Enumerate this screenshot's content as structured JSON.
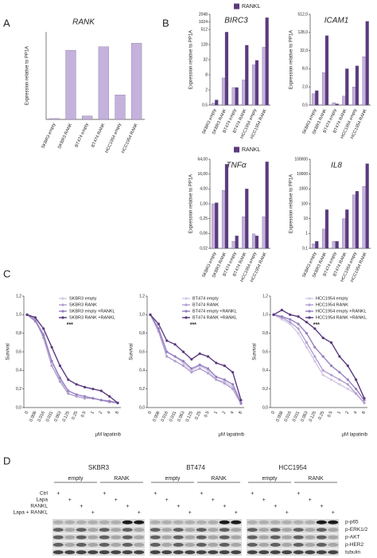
{
  "panel_labels": [
    "A",
    "B",
    "C",
    "D"
  ],
  "chart_data": [
    {
      "type": "bar",
      "title": "RANK",
      "y_label": "Expression relative to PP1A",
      "categories": [
        "SKBR3 empty",
        "SKBR3 RANK",
        "BT474 empty",
        "BT474 RANK",
        "HCC1954 empty",
        "HCC1954 RANK"
      ],
      "values": [
        1,
        79,
        4,
        83,
        28,
        87
      ],
      "color": "#c4b2dd",
      "ylim": [
        0,
        100
      ]
    },
    {
      "type": "bar",
      "title": "BIRC3",
      "y_label": "Expression relative to PP1A",
      "log_scale": true,
      "legend": true,
      "categories": [
        "SKBR3 empty",
        "SKBR3 RANK",
        "BT474 empty",
        "BT474 RANK",
        "HCC1954 empty",
        "HCC1954 RANK"
      ],
      "series": [
        {
          "color": "#c4b2dd",
          "values": [
            0.6,
            6,
            2.5,
            5,
            20,
            100
          ]
        },
        {
          "name": "RANKL",
          "color": "#5b3a7e",
          "values": [
            0.8,
            400,
            2.5,
            120,
            30,
            1500
          ]
        }
      ],
      "ylim": [
        0.5,
        2048
      ],
      "yticks": [
        {
          "value": 0.5,
          "label": "0,5"
        },
        2,
        8,
        32,
        128,
        512,
        1024,
        2048
      ]
    },
    {
      "type": "bar",
      "title": "ICAM1",
      "y_label": "Expression relative to PP1A",
      "log_scale": true,
      "categories": [
        "SKBR3 empty",
        "SKBR3 RANK",
        "BT474 empty",
        "BT474 RANK",
        "HCC1954 empty",
        "HCC1954 RANK"
      ],
      "series": [
        {
          "color": "#c4b2dd",
          "values": [
            1.2,
            6,
            0.6,
            1,
            2,
            20
          ]
        },
        {
          "name": "RANKL",
          "color": "#5b3a7e",
          "values": [
            1.5,
            100,
            0.55,
            8,
            10,
            300
          ]
        }
      ],
      "ylim": [
        0.5,
        512
      ],
      "yticks": [
        {
          "value": 0.5,
          "label": "0,5"
        },
        {
          "value": 2,
          "label": "2,0"
        },
        {
          "value": 8,
          "label": "8,0"
        },
        {
          "value": 32,
          "label": "32,0"
        },
        {
          "value": 128,
          "label": "128,0"
        },
        {
          "value": 512,
          "label": "512,0"
        }
      ]
    },
    {
      "type": "bar",
      "title": "TNFα",
      "y_label": "Expression relative to PP1A",
      "log_scale": true,
      "legend": true,
      "categories": [
        "SKBR3 empty",
        "SKBR3 RANK",
        "BT474 empty",
        "BT474 RANK",
        "HCC1954 empty",
        "HCC1954 RANK"
      ],
      "series": [
        {
          "color": "#c4b2dd",
          "values": [
            1,
            3.5,
            0.03,
            0.3,
            0.06,
            0.3
          ]
        },
        {
          "name": "RANKL",
          "color": "#5b3a7e",
          "values": [
            1.1,
            40,
            0.05,
            4,
            0.05,
            50
          ]
        }
      ],
      "ylim": [
        0.015625,
        64
      ],
      "yticks": [
        {
          "value": 0.015625,
          "label": "0,02"
        },
        {
          "value": 0.0625,
          "label": "0,06"
        },
        {
          "value": 0.25,
          "label": "0,25"
        },
        {
          "value": 1,
          "label": "1,00"
        },
        {
          "value": 4,
          "label": "4,00"
        },
        {
          "value": 16,
          "label": "16,00"
        },
        {
          "value": 64,
          "label": "64,00"
        }
      ]
    },
    {
      "type": "bar",
      "title": "IL8",
      "y_label": "Expression relative to PP1A",
      "log_scale": true,
      "categories": [
        "SKBR3 empty",
        "SKBR3 RANK",
        "BT474 empty",
        "BT474 RANK",
        "HCC1954 empty",
        "HCC1954 RANK"
      ],
      "series": [
        {
          "color": "#c4b2dd",
          "values": [
            0.2,
            2,
            0.3,
            10,
            400,
            1500
          ]
        },
        {
          "name": "RANKL",
          "color": "#5b3a7e",
          "values": [
            0.3,
            40,
            0.3,
            40,
            700,
            50000
          ]
        }
      ],
      "ylim": [
        0.1,
        100000
      ],
      "yticks": [
        {
          "value": 0.1,
          "label": "0,1"
        },
        1,
        10,
        100,
        1000,
        10000,
        100000
      ]
    },
    {
      "type": "line",
      "y_label": "Survival",
      "x_label": "µM lapatinib",
      "annotation": "***",
      "legend": true,
      "categories": [
        "0",
        "0.008",
        "0.016",
        "0.031",
        "0.063",
        "0.125",
        "0.25",
        "0.5",
        "1",
        "2",
        "4",
        "8"
      ],
      "series": [
        {
          "name": "SKBR3 empty",
          "color": "#d4c8e6",
          "values": [
            1,
            0.95,
            0.8,
            0.5,
            0.3,
            0.15,
            0.12,
            0.1,
            0.1,
            0.08,
            0.06,
            0.05
          ]
        },
        {
          "name": "SKBR3 RANK",
          "color": "#b3a0d0",
          "values": [
            1,
            0.95,
            0.75,
            0.45,
            0.28,
            0.15,
            0.12,
            0.1,
            0.1,
            0.08,
            0.06,
            0.05
          ]
        },
        {
          "name": "SKBR3 empty +RANKL",
          "color": "#9680bf",
          "values": [
            1,
            0.93,
            0.78,
            0.5,
            0.32,
            0.18,
            0.14,
            0.12,
            0.1,
            0.08,
            0.07,
            0.05
          ]
        },
        {
          "name": "SKBR3 RANK +RANKL",
          "color": "#5b3a7e",
          "values": [
            1,
            0.97,
            0.85,
            0.65,
            0.45,
            0.3,
            0.25,
            0.22,
            0.2,
            0.18,
            0.12,
            0.05
          ]
        }
      ],
      "ylim": [
        0,
        1.2
      ],
      "yticks": [
        {
          "value": 0,
          "label": "0,0"
        },
        {
          "value": 0.2,
          "label": "0,2"
        },
        {
          "value": 0.4,
          "label": "0,4"
        },
        {
          "value": 0.6,
          "label": "0,6"
        },
        {
          "value": 0.8,
          "label": "0,8"
        },
        {
          "value": 1,
          "label": "1,0"
        },
        {
          "value": 1.2,
          "label": "1,2"
        }
      ]
    },
    {
      "type": "line",
      "y_label": "Survival",
      "x_label": "µM lapatinib",
      "annotation": "***",
      "legend": true,
      "categories": [
        "0",
        "0.008",
        "0.016",
        "0.031",
        "0.063",
        "0.125",
        "0.25",
        "0.5",
        "1",
        "2",
        "4",
        "8"
      ],
      "series": [
        {
          "name": "BT474 empty",
          "color": "#d4c8e6",
          "values": [
            1,
            0.85,
            0.6,
            0.55,
            0.48,
            0.4,
            0.45,
            0.4,
            0.3,
            0.28,
            0.22,
            0.05
          ]
        },
        {
          "name": "BT474 RANK",
          "color": "#b3a0d0",
          "values": [
            1,
            0.82,
            0.55,
            0.5,
            0.45,
            0.38,
            0.42,
            0.37,
            0.3,
            0.26,
            0.2,
            0.04
          ]
        },
        {
          "name": "BT474 empty +RANKL",
          "color": "#9680bf",
          "values": [
            1,
            0.85,
            0.6,
            0.55,
            0.5,
            0.42,
            0.46,
            0.42,
            0.33,
            0.3,
            0.25,
            0.05
          ]
        },
        {
          "name": "BT474 RANK +RANKL",
          "color": "#5b3a7e",
          "values": [
            1,
            0.9,
            0.72,
            0.68,
            0.6,
            0.52,
            0.58,
            0.55,
            0.48,
            0.45,
            0.38,
            0.08
          ]
        }
      ],
      "ylim": [
        0,
        1.2
      ],
      "yticks": [
        {
          "value": 0,
          "label": "0,0"
        },
        {
          "value": 0.2,
          "label": "0,2"
        },
        {
          "value": 0.4,
          "label": "0,4"
        },
        {
          "value": 0.6,
          "label": "0,6"
        },
        {
          "value": 0.8,
          "label": "0,8"
        },
        {
          "value": 1,
          "label": "1,0"
        },
        {
          "value": 1.2,
          "label": "1,2"
        }
      ]
    },
    {
      "type": "line",
      "y_label": "Survival",
      "x_label": "µM lapatinib",
      "annotation": "***",
      "legend": true,
      "categories": [
        "0",
        "0.008",
        "0.016",
        "0.031",
        "0.063",
        "0.125",
        "0.25",
        "0.5",
        "1",
        "2",
        "4",
        "8"
      ],
      "series": [
        {
          "name": "HCC1954 empty",
          "color": "#d4c8e6",
          "values": [
            1,
            0.95,
            0.9,
            0.8,
            0.65,
            0.5,
            0.35,
            0.3,
            0.25,
            0.2,
            0.15,
            0.05
          ]
        },
        {
          "name": "HCC1954 RANK",
          "color": "#b3a0d0",
          "values": [
            1,
            0.97,
            0.92,
            0.85,
            0.7,
            0.55,
            0.4,
            0.35,
            0.3,
            0.25,
            0.15,
            0.05
          ]
        },
        {
          "name": "HCC1954 empty +RANKL",
          "color": "#9680bf",
          "values": [
            1,
            0.98,
            0.95,
            0.9,
            0.8,
            0.65,
            0.55,
            0.45,
            0.38,
            0.3,
            0.2,
            0.08
          ]
        },
        {
          "name": "HCC1954 RANK +RANKL",
          "color": "#5b3a7e",
          "values": [
            1,
            1.05,
            1,
            0.98,
            0.92,
            0.85,
            0.75,
            0.7,
            0.55,
            0.45,
            0.3,
            0.1
          ]
        }
      ],
      "ylim": [
        0,
        1.2
      ],
      "yticks": [
        {
          "value": 0,
          "label": "0,0"
        },
        {
          "value": 0.2,
          "label": "0,2"
        },
        {
          "value": 0.4,
          "label": "0,4"
        },
        {
          "value": 0.6,
          "label": "0,6"
        },
        {
          "value": 0.8,
          "label": "0,8"
        },
        {
          "value": 1,
          "label": "1,0"
        },
        {
          "value": 1.2,
          "label": "1,2"
        }
      ]
    }
  ],
  "blot": {
    "cell_lines": [
      "SKBR3",
      "BT474",
      "HCC1954"
    ],
    "groups": [
      "empty",
      "RANK"
    ],
    "treatments": [
      "Ctrl",
      "Lapa",
      "RANKL",
      "Lapa + RANKL"
    ],
    "mark": "+",
    "bands": [
      "p-p65",
      "p-ERK1/2",
      "p-AKT",
      "p-HER2",
      "tubulin"
    ]
  }
}
